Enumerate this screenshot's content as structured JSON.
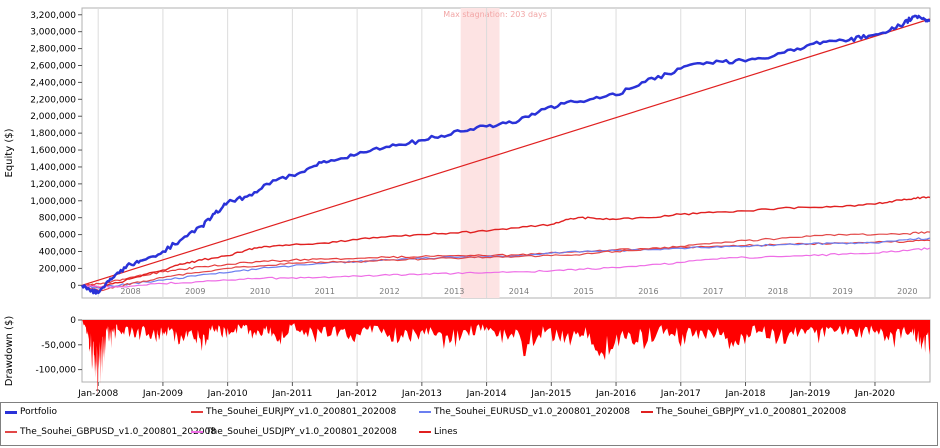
{
  "chart_data": [
    {
      "type": "line",
      "title": "",
      "annotation": "Max stagnation: 203 days",
      "ylabel": "Equity ($)",
      "xlabel": "",
      "ylim": [
        -150000,
        3280000
      ],
      "xlim": [
        2007.75,
        2020.85
      ],
      "grid": true,
      "y_ticks": [
        0,
        200000,
        400000,
        600000,
        800000,
        1000000,
        1200000,
        1400000,
        1600000,
        1800000,
        2000000,
        2200000,
        2400000,
        2600000,
        2800000,
        3000000,
        3200000
      ],
      "y_tick_labels": [
        "0",
        "200,000",
        "400,000",
        "600,000",
        "800,000",
        "1,000,000",
        "1,200,000",
        "1,400,000",
        "1,600,000",
        "1,800,000",
        "2,000,000",
        "2,200,000",
        "2,400,000",
        "2,600,000",
        "2,800,000",
        "3,000,000",
        "3,200,000"
      ],
      "year_labels": [
        "2008",
        "2009",
        "2010",
        "2011",
        "2012",
        "2013",
        "2014",
        "2015",
        "2016",
        "2017",
        "2018",
        "2019",
        "2020"
      ],
      "stagnation_period": [
        2013.6,
        2014.2
      ],
      "series": [
        {
          "name": "Portfolio",
          "color": "#2a32d8",
          "width": 2.5,
          "x": [
            2007.75,
            2007.9,
            2008.0,
            2008.15,
            2008.3,
            2008.5,
            2008.7,
            2009.0,
            2009.3,
            2009.6,
            2009.8,
            2010.0,
            2010.3,
            2010.6,
            2011.0,
            2011.3,
            2011.6,
            2012.0,
            2012.4,
            2012.8,
            2013.2,
            2013.6,
            2014.0,
            2014.4,
            2014.8,
            2015.2,
            2015.6,
            2016.0,
            2016.4,
            2016.8,
            2017.2,
            2017.6,
            2018.0,
            2018.4,
            2018.8,
            2019.2,
            2019.6,
            2019.9,
            2020.2,
            2020.45,
            2020.6,
            2020.75,
            2020.85
          ],
          "values": [
            0,
            -60000,
            -90000,
            50000,
            150000,
            250000,
            300000,
            400000,
            550000,
            700000,
            850000,
            980000,
            1050000,
            1200000,
            1300000,
            1400000,
            1480000,
            1550000,
            1620000,
            1680000,
            1750000,
            1820000,
            1880000,
            1920000,
            2050000,
            2150000,
            2200000,
            2250000,
            2400000,
            2500000,
            2620000,
            2650000,
            2650000,
            2700000,
            2800000,
            2880000,
            2900000,
            2950000,
            3000000,
            3100000,
            3180000,
            3160000,
            3130000
          ]
        },
        {
          "name": "The_Souhei_EURJPY_v1.0_200801_202008",
          "color": "#e53b3b",
          "width": 1.2,
          "x": [
            2007.75,
            2008.0,
            2008.3,
            2008.6,
            2009.0,
            2009.3,
            2009.6,
            2010.0,
            2010.5,
            2011.0,
            2011.5,
            2012.0,
            2012.5,
            2013.0,
            2013.5,
            2014.0,
            2014.5,
            2015.0,
            2015.5,
            2016.0,
            2016.5,
            2017.0,
            2017.5,
            2018.0,
            2018.5,
            2019.0,
            2019.5,
            2020.0,
            2020.5,
            2020.85
          ],
          "values": [
            0,
            20000,
            60000,
            110000,
            160000,
            190000,
            220000,
            250000,
            280000,
            300000,
            310000,
            320000,
            330000,
            340000,
            350000,
            350000,
            360000,
            390000,
            400000,
            420000,
            430000,
            440000,
            460000,
            470000,
            480000,
            490000,
            500000,
            510000,
            520000,
            530000
          ]
        },
        {
          "name": "The_Souhei_EURUSD_v1.0_200801_202008",
          "color": "#6b7ff0",
          "width": 1.2,
          "x": [
            2007.75,
            2008.0,
            2008.5,
            2009.0,
            2009.5,
            2010.0,
            2010.5,
            2011.0,
            2011.5,
            2012.0,
            2012.5,
            2013.0,
            2013.5,
            2014.0,
            2014.5,
            2015.0,
            2015.5,
            2016.0,
            2016.5,
            2017.0,
            2017.5,
            2018.0,
            2018.5,
            2019.0,
            2019.5,
            2020.0,
            2020.5,
            2020.85
          ],
          "values": [
            0,
            -30000,
            20000,
            60000,
            110000,
            150000,
            200000,
            230000,
            260000,
            280000,
            300000,
            320000,
            330000,
            340000,
            350000,
            380000,
            400000,
            410000,
            420000,
            440000,
            450000,
            460000,
            480000,
            490000,
            500000,
            500000,
            540000,
            560000
          ]
        },
        {
          "name": "The_Souhei_GBPJPY_v1.0_200801_202008",
          "color": "#e02020",
          "width": 1.4,
          "x": [
            2007.75,
            2008.0,
            2008.3,
            2008.6,
            2009.0,
            2009.3,
            2009.6,
            2010.0,
            2010.3,
            2010.6,
            2011.0,
            2011.5,
            2012.0,
            2012.5,
            2013.0,
            2013.5,
            2014.0,
            2014.5,
            2015.0,
            2015.3,
            2015.6,
            2016.0,
            2016.5,
            2017.0,
            2017.5,
            2018.0,
            2018.5,
            2019.0,
            2019.5,
            2020.0,
            2020.3,
            2020.6,
            2020.85
          ],
          "values": [
            0,
            -20000,
            30000,
            100000,
            180000,
            250000,
            300000,
            350000,
            420000,
            460000,
            480000,
            500000,
            540000,
            580000,
            600000,
            620000,
            640000,
            680000,
            720000,
            790000,
            800000,
            780000,
            800000,
            840000,
            860000,
            880000,
            910000,
            920000,
            930000,
            960000,
            1000000,
            1030000,
            1040000
          ]
        },
        {
          "name": "The_Souhei_GBPUSD_v1.0_200801_202008",
          "color": "#e24848",
          "width": 1.2,
          "x": [
            2007.75,
            2008.0,
            2008.3,
            2008.6,
            2009.0,
            2009.5,
            2010.0,
            2010.5,
            2011.0,
            2011.5,
            2012.0,
            2012.5,
            2013.0,
            2013.5,
            2014.0,
            2014.5,
            2015.0,
            2015.5,
            2016.0,
            2016.5,
            2017.0,
            2017.5,
            2018.0,
            2018.5,
            2019.0,
            2019.5,
            2020.0,
            2020.5,
            2020.85
          ],
          "values": [
            0,
            -60000,
            -20000,
            40000,
            90000,
            150000,
            200000,
            230000,
            260000,
            270000,
            280000,
            300000,
            310000,
            320000,
            330000,
            340000,
            350000,
            370000,
            400000,
            430000,
            460000,
            500000,
            530000,
            550000,
            580000,
            600000,
            600000,
            610000,
            630000
          ]
        },
        {
          "name": "The_Souhei_USDJPY_v1.0_200801_202008",
          "color": "#ee6ee6",
          "width": 1.2,
          "x": [
            2007.75,
            2008.0,
            2008.5,
            2009.0,
            2009.5,
            2010.0,
            2010.5,
            2011.0,
            2011.5,
            2012.0,
            2012.5,
            2013.0,
            2013.5,
            2014.0,
            2014.5,
            2015.0,
            2015.5,
            2016.0,
            2016.5,
            2017.0,
            2017.5,
            2018.0,
            2018.5,
            2019.0,
            2019.5,
            2020.0,
            2020.5,
            2020.85
          ],
          "values": [
            0,
            -20000,
            -10000,
            20000,
            40000,
            60000,
            80000,
            90000,
            100000,
            110000,
            120000,
            130000,
            140000,
            150000,
            160000,
            170000,
            190000,
            210000,
            240000,
            270000,
            310000,
            330000,
            340000,
            350000,
            370000,
            380000,
            410000,
            440000
          ]
        },
        {
          "name": "Lines",
          "color": "#e02020",
          "width": 1.2,
          "x": [
            2007.75,
            2020.85
          ],
          "values": [
            0,
            3150000
          ]
        }
      ]
    },
    {
      "type": "area",
      "title": "",
      "ylabel": "Drawdown ($)",
      "ylim": [
        -125000,
        0
      ],
      "y_ticks": [
        0,
        -50000,
        -100000
      ],
      "y_tick_labels": [
        "0",
        "-50,000",
        "-100,000"
      ],
      "x_tick_labels": [
        "Jan-2008",
        "Jan-2009",
        "Jan-2010",
        "Jan-2011",
        "Jan-2012",
        "Jan-2013",
        "Jan-2014",
        "Jan-2015",
        "Jan-2016",
        "Jan-2017",
        "Jan-2018",
        "Jan-2019",
        "Jan-2020"
      ],
      "color": "#ff0000",
      "series": [
        {
          "x": [
            2007.75,
            2007.85,
            2007.9,
            2007.95,
            2008.0,
            2008.05,
            2008.1,
            2008.15,
            2008.2,
            2008.3,
            2008.5,
            2008.7,
            2008.9,
            2009.0,
            2009.2,
            2009.4,
            2009.6,
            2009.8,
            2010.0,
            2010.2,
            2010.4,
            2010.6,
            2010.8,
            2011.0,
            2011.3,
            2011.6,
            2011.9,
            2012.2,
            2012.5,
            2012.8,
            2013.1,
            2013.4,
            2013.7,
            2014.0,
            2014.3,
            2014.6,
            2014.9,
            2015.2,
            2015.5,
            2015.8,
            2016.1,
            2016.4,
            2016.7,
            2017.0,
            2017.3,
            2017.6,
            2017.9,
            2018.2,
            2018.5,
            2018.8,
            2019.1,
            2019.4,
            2019.7,
            2020.0,
            2020.3,
            2020.55,
            2020.7,
            2020.85
          ],
          "values": [
            0,
            -40000,
            -90000,
            -110000,
            -120000,
            -100000,
            -70000,
            -30000,
            -50000,
            -20000,
            -40000,
            -30000,
            -50000,
            -25000,
            -45000,
            -30000,
            -60000,
            -20000,
            -40000,
            -15000,
            -35000,
            -20000,
            -45000,
            -15000,
            -40000,
            -25000,
            -50000,
            -20000,
            -35000,
            -45000,
            -25000,
            -55000,
            -30000,
            -20000,
            -45000,
            -60000,
            -25000,
            -50000,
            -30000,
            -75000,
            -35000,
            -50000,
            -25000,
            -45000,
            -30000,
            -40000,
            -55000,
            -20000,
            -45000,
            -30000,
            -40000,
            -20000,
            -35000,
            -25000,
            -45000,
            -30000,
            -50000,
            -70000
          ]
        }
      ]
    }
  ],
  "legend": {
    "items": [
      {
        "label": "Portfolio",
        "color": "#2a32d8"
      },
      {
        "label": "The_Souhei_EURJPY_v1.0_200801_202008",
        "color": "#e53b3b"
      },
      {
        "label": "The_Souhei_EURUSD_v1.0_200801_202008",
        "color": "#6b7ff0"
      },
      {
        "label": "The_Souhei_GBPJPY_v1.0_200801_202008",
        "color": "#e02020"
      },
      {
        "label": "The_Souhei_GBPUSD_v1.0_200801_202008",
        "color": "#e24848"
      },
      {
        "label": "The_Souhei_USDJPY_v1.0_200801_202008",
        "color": "#ee6ee6"
      },
      {
        "label": "Lines",
        "color": "#e02020"
      }
    ]
  }
}
